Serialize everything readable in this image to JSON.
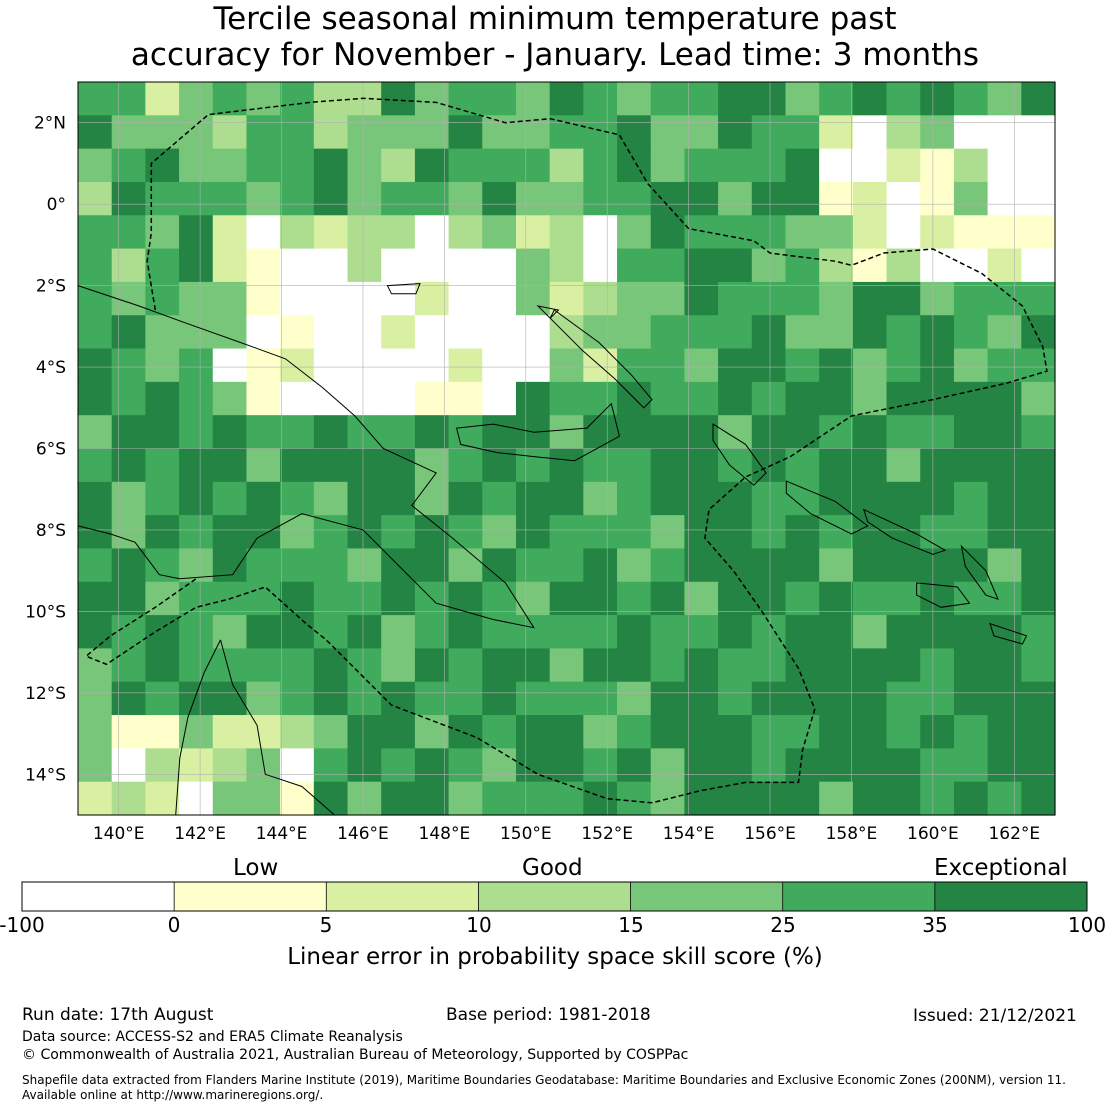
{
  "title": {
    "line1": "Tercile seasonal minimum temperature past",
    "line2": "accuracy for November - January. Lead time: 3 months"
  },
  "map": {
    "lat_labels": [
      "2°N",
      "0°",
      "2°S",
      "4°S",
      "6°S",
      "8°S",
      "10°S",
      "12°S",
      "14°S"
    ],
    "lon_labels": [
      "140°E",
      "142°E",
      "144°E",
      "146°E",
      "148°E",
      "150°E",
      "152°E",
      "154°E",
      "156°E",
      "158°E",
      "160°E",
      "162°E"
    ],
    "lat_values": [
      2,
      0,
      -2,
      -4,
      -6,
      -8,
      -10,
      -12,
      -14
    ],
    "lon_values": [
      140,
      142,
      144,
      146,
      148,
      150,
      152,
      154,
      156,
      158,
      160,
      162
    ],
    "extent": {
      "lon_min": 139,
      "lon_max": 163,
      "lat_min": -15,
      "lat_max": 3
    }
  },
  "colorbar": {
    "category_labels": {
      "low": "Low",
      "good": "Good",
      "exceptional": "Exceptional"
    },
    "ticks": [
      "-100",
      "0",
      "5",
      "10",
      "15",
      "25",
      "35",
      "100"
    ],
    "colors": [
      "#ffffff",
      "#ffffcc",
      "#d9f0a3",
      "#addd8e",
      "#78c679",
      "#41ab5d",
      "#238443"
    ],
    "title": "Linear error in probability space skill score (%)"
  },
  "footer": {
    "run_date": "Run date: 17th August",
    "base_period": "Base period: 1981-2018",
    "issued": "Issued: 21/12/2021",
    "data_source": "Data source: ACCESS-S2 and ERA5 Climate Reanalysis",
    "copyright": "© Commonwealth of Australia 2021, Australian Bureau of Meteorology, Supported by COSPPac",
    "shapefile_line1": "Shapefile data extracted from Flanders Marine Institute (2019), Maritime Boundaries Geodatabase: Maritime Boundaries and Exclusive Economic Zones (200NM), version 11.",
    "shapefile_line2": "Available online at http://www.marineregions.org/."
  }
}
